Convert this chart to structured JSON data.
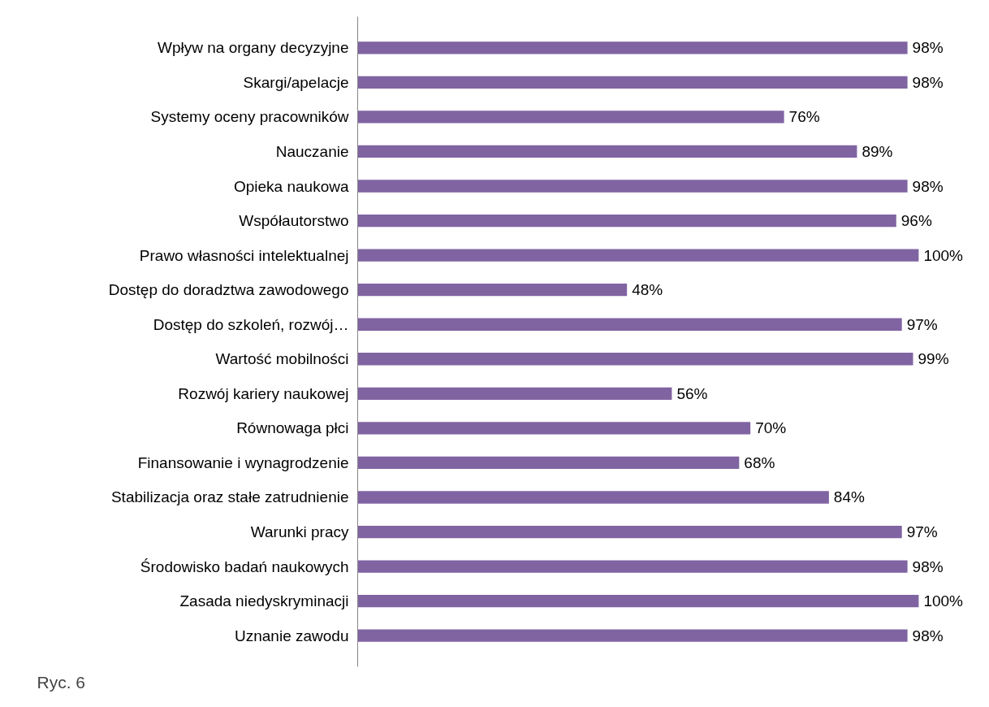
{
  "chart_data": {
    "type": "bar",
    "orientation": "horizontal",
    "color": "#8064a2",
    "categories": [
      "Wpływ na organy decyzyjne",
      "Skargi/apelacje",
      "Systemy oceny pracowników",
      "Nauczanie",
      "Opieka naukowa",
      "Współautorstwo",
      "Prawo własności intelektualnej",
      "Dostęp do doradztwa zawodowego",
      "Dostęp do szkoleń, rozwój…",
      "Wartość mobilności",
      "Rozwój kariery naukowej",
      "Równowaga płci",
      "Finansowanie i wynagrodzenie",
      "Stabilizacja oraz stałe zatrudnienie",
      "Warunki pracy",
      "Środowisko badań naukowych",
      "Zasada niedyskryminacji",
      "Uznanie zawodu"
    ],
    "values": [
      98,
      98,
      76,
      89,
      98,
      96,
      100,
      48,
      97,
      99,
      56,
      70,
      68,
      84,
      97,
      98,
      100,
      98
    ],
    "value_labels": [
      "98%",
      "98%",
      "76%",
      "89%",
      "98%",
      "96%",
      "100%",
      "48%",
      "97%",
      "99%",
      "56%",
      "70%",
      "68%",
      "84%",
      "97%",
      "98%",
      "100%",
      "98%"
    ],
    "annotations": [
      "Ryc. 6"
    ],
    "grid": false
  }
}
